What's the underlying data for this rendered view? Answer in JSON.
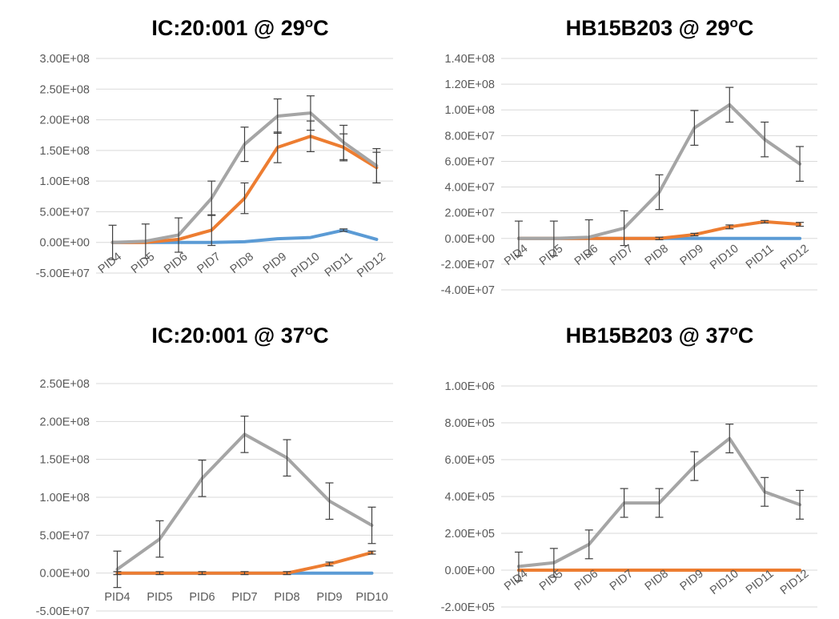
{
  "colors": {
    "grey": "#a5a5a5",
    "orange": "#ed7d31",
    "blue": "#5b9bd5",
    "grid": "#d9d9d9",
    "text": "#595959"
  },
  "chart_data": [
    {
      "type": "line",
      "title": "IC:20:001 @ 29oC",
      "title_main": "IC:20:001 @ 29",
      "title_sup": "o",
      "title_end": "C",
      "xlabel": "",
      "ylabel": "",
      "categories": [
        "PID4",
        "PID5",
        "PID6",
        "PID7",
        "PID8",
        "PID9",
        "PID10",
        "PID11",
        "PID12"
      ],
      "x_labels_rotated": true,
      "ylim": [
        -50000000,
        300000000
      ],
      "yticks": [
        -50000000,
        0,
        50000000,
        100000000,
        150000000,
        200000000,
        250000000,
        300000000
      ],
      "ytick_labels": [
        "-5.00E+07",
        "0.00E+00",
        "5.00E+07",
        "1.00E+08",
        "1.50E+08",
        "2.00E+08",
        "2.50E+08",
        "3.00E+08"
      ],
      "grid": true,
      "series": [
        {
          "color": "#a5a5a5",
          "values": [
            0,
            2000000,
            12000000,
            72000000,
            160000000,
            206000000,
            211000000,
            163000000,
            125000000
          ],
          "errors": [
            28000000,
            28000000,
            28000000,
            28000000,
            28000000,
            28000000,
            28000000,
            28000000,
            28000000
          ]
        },
        {
          "color": "#ed7d31",
          "values": [
            0,
            0,
            5000000,
            20000000,
            72000000,
            155000000,
            173000000,
            155000000,
            122000000
          ],
          "errors": [
            0,
            0,
            0,
            25000000,
            25000000,
            25000000,
            25000000,
            22000000,
            25000000
          ]
        },
        {
          "color": "#5b9bd5",
          "values": [
            0,
            0,
            0,
            0,
            1000000,
            6000000,
            8000000,
            20000000,
            5000000
          ],
          "errors": [
            0,
            0,
            0,
            0,
            0,
            0,
            0,
            2000000,
            0
          ]
        }
      ]
    },
    {
      "type": "line",
      "title": "HB15B203 @ 29oC",
      "title_main": "HB15B203 @ 29",
      "title_sup": "o",
      "title_end": "C",
      "xlabel": "",
      "ylabel": "",
      "categories": [
        "PID4",
        "PID5",
        "PID6",
        "PID7",
        "PID8",
        "PID9",
        "PID10",
        "PID11",
        "PID12"
      ],
      "x_labels_rotated": true,
      "ylim": [
        -40000000,
        140000000
      ],
      "yticks": [
        -40000000,
        -20000000,
        0,
        20000000,
        40000000,
        60000000,
        80000000,
        100000000,
        120000000,
        140000000
      ],
      "ytick_labels": [
        "-4.00E+07",
        "-2.00E+07",
        "0.00E+00",
        "2.00E+07",
        "4.00E+07",
        "6.00E+07",
        "8.00E+07",
        "1.00E+08",
        "1.20E+08",
        "1.40E+08"
      ],
      "grid": true,
      "series": [
        {
          "color": "#a5a5a5",
          "values": [
            0,
            0,
            1000000,
            8000000,
            36000000,
            86000000,
            104000000,
            77000000,
            58000000
          ],
          "errors": [
            13500000,
            13500000,
            13500000,
            13500000,
            13500000,
            13500000,
            13500000,
            13500000,
            13500000
          ]
        },
        {
          "color": "#ed7d31",
          "values": [
            0,
            0,
            0,
            0,
            0,
            3000000,
            9000000,
            13000000,
            11000000
          ],
          "errors": [
            0,
            0,
            0,
            0,
            1000000,
            1000000,
            1500000,
            1000000,
            1500000
          ]
        },
        {
          "color": "#5b9bd5",
          "values": [
            0,
            0,
            0,
            0,
            0,
            0,
            0,
            0,
            0
          ],
          "errors": [
            0,
            0,
            0,
            0,
            0,
            0,
            0,
            0,
            0
          ]
        }
      ]
    },
    {
      "type": "line",
      "title": "IC:20:001 @ 37oC",
      "title_main": "IC:20:001 @ 37",
      "title_sup": "o",
      "title_end": "C",
      "xlabel": "",
      "ylabel": "",
      "categories": [
        "PID4",
        "PID5",
        "PID6",
        "PID7",
        "PID8",
        "PID9",
        "PID10"
      ],
      "x_labels_rotated": false,
      "ylim": [
        -50000000,
        250000000
      ],
      "yticks": [
        -50000000,
        0,
        50000000,
        100000000,
        150000000,
        200000000,
        250000000
      ],
      "ytick_labels": [
        "-5.00E+07",
        "0.00E+00",
        "5.00E+07",
        "1.00E+08",
        "1.50E+08",
        "2.00E+08",
        "2.50E+08"
      ],
      "grid": true,
      "series": [
        {
          "color": "#a5a5a5",
          "values": [
            5000000,
            45000000,
            125000000,
            183000000,
            152000000,
            95000000,
            63000000
          ],
          "errors": [
            24000000,
            24000000,
            24000000,
            24000000,
            24000000,
            24000000,
            24000000
          ]
        },
        {
          "color": "#ed7d31",
          "values": [
            0,
            0,
            0,
            0,
            0,
            12000000,
            27000000
          ],
          "errors": [
            2000000,
            2000000,
            2000000,
            2000000,
            2000000,
            2500000,
            2000000
          ]
        },
        {
          "color": "#5b9bd5",
          "values": [
            0,
            0,
            0,
            0,
            0,
            0,
            0
          ],
          "errors": [
            0,
            0,
            0,
            0,
            0,
            0,
            0
          ]
        }
      ]
    },
    {
      "type": "line",
      "title": "HB15B203 @ 37oC",
      "title_main": "HB15B203 @ 37",
      "title_sup": "o",
      "title_end": "C",
      "xlabel": "",
      "ylabel": "",
      "categories": [
        "PID4",
        "PID5",
        "PID6",
        "PID7",
        "PID8",
        "PID9",
        "PID10",
        "PID11",
        "PID12"
      ],
      "x_labels_rotated": true,
      "ylim": [
        -200000,
        1000000
      ],
      "yticks": [
        -200000,
        0,
        200000,
        400000,
        600000,
        800000,
        1000000
      ],
      "ytick_labels": [
        "-2.00E+05",
        "0.00E+00",
        "2.00E+05",
        "4.00E+05",
        "6.00E+05",
        "8.00E+05",
        "1.00E+06"
      ],
      "grid": true,
      "series": [
        {
          "color": "#a5a5a5",
          "values": [
            20000,
            40000,
            140000,
            365000,
            365000,
            565000,
            715000,
            425000,
            355000
          ],
          "errors": [
            78000,
            78000,
            78000,
            78000,
            78000,
            78000,
            78000,
            78000,
            78000
          ]
        },
        {
          "color": "#ed7d31",
          "values": [
            0,
            0,
            0,
            0,
            0,
            0,
            0,
            0,
            0
          ],
          "errors": [
            0,
            0,
            0,
            0,
            0,
            0,
            0,
            0,
            0
          ]
        }
      ]
    }
  ]
}
